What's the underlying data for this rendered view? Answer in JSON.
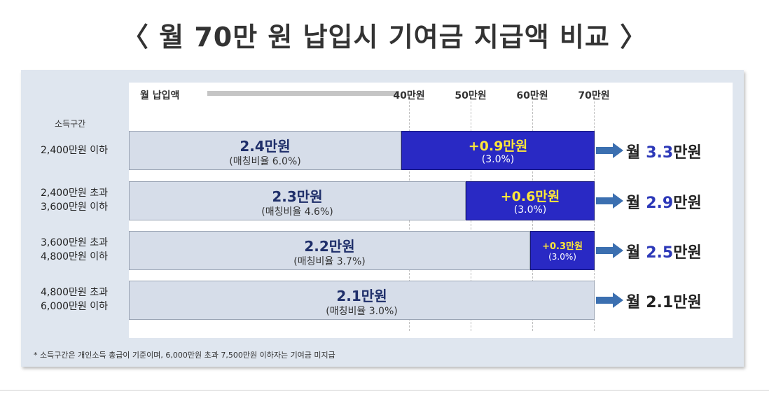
{
  "title": "〈 월 70만 원 납입시 기여금 지급액 비교 〉",
  "top_axis": {
    "label": "월 납입액",
    "ticks": [
      {
        "label": "40만원",
        "value": 40
      },
      {
        "label": "50만원",
        "value": 50
      },
      {
        "label": "60만원",
        "value": 60
      },
      {
        "label": "70만원",
        "value": 70
      }
    ]
  },
  "income_axis_title": "소득구간",
  "footnote": "* 소득구간은 개인소득 총급이 기준이며, 6,000만원 초과 7,500만원 이하자는 기여금 미지급",
  "colors": {
    "base_bar": "#d6dde9",
    "additional_bar": "#2929c4",
    "additional_text": "#ffe838",
    "total_accent": "#2c38b8",
    "arrow": "#3b6fb0"
  },
  "chart_data": {
    "type": "bar",
    "orientation": "horizontal",
    "stacked": true,
    "top_axis_range_manwon": [
      40,
      70
    ],
    "categories": [
      "2,400만원 이하",
      "2,400만원 초과 3,600만원 이하",
      "3,600만원 초과 4,800만원 이하",
      "4,800만원 초과 6,000만원 이하"
    ],
    "rows": [
      {
        "label_lines": [
          "2,400만원 이하"
        ],
        "base_value": 2.4,
        "base_text": "2.4만원",
        "base_ratio": "(매칭비율 6.0%)",
        "add_value": 0.9,
        "add_text": "+0.9만원",
        "add_ratio": "(3.0%)",
        "total_prefix": "월",
        "total_num": "3.3",
        "total_unit": "만원"
      },
      {
        "label_lines": [
          "2,400만원 초과",
          "3,600만원 이하"
        ],
        "base_value": 2.3,
        "base_text": "2.3만원",
        "base_ratio": "(매칭비율 4.6%)",
        "add_value": 0.6,
        "add_text": "+0.6만원",
        "add_ratio": "(3.0%)",
        "total_prefix": "월",
        "total_num": "2.9",
        "total_unit": "만원"
      },
      {
        "label_lines": [
          "3,600만원 초과",
          "4,800만원 이하"
        ],
        "base_value": 2.2,
        "base_text": "2.2만원",
        "base_ratio": "(매칭비율 3.7%)",
        "add_value": 0.3,
        "add_text": "+0.3만원",
        "add_ratio": "(3.0%)",
        "total_prefix": "월",
        "total_num": "2.5",
        "total_unit": "만원"
      },
      {
        "label_lines": [
          "4,800만원 초과",
          "6,000만원 이하"
        ],
        "base_value": 2.1,
        "base_text": "2.1만원",
        "base_ratio": "(매칭비율 3.0%)",
        "add_value": 0,
        "add_text": "",
        "add_ratio": "",
        "total_prefix": "월",
        "total_num": "2.1",
        "total_unit": "만원"
      }
    ]
  }
}
